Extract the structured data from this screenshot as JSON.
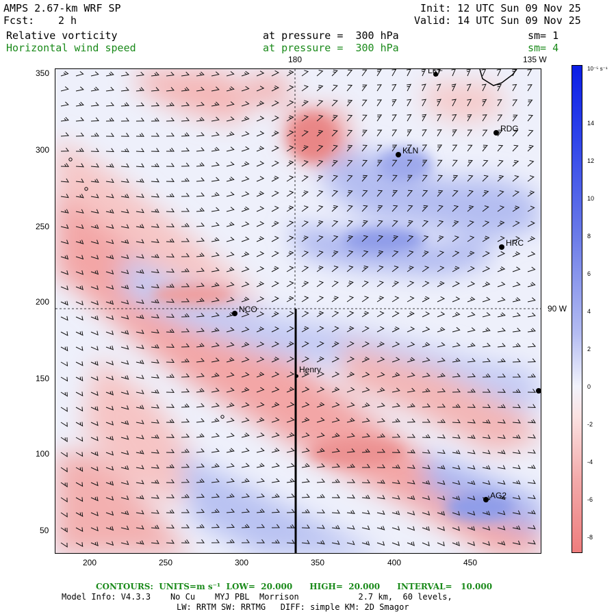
{
  "header": {
    "model": "AMPS 2.67-km WRF SP",
    "fcst_label": "Fcst:",
    "fcst_value": "2 h",
    "init": "Init: 12 UTC Sun 09 Nov 25",
    "valid": "Valid: 14 UTC Sun 09 Nov 25",
    "field1": "Relative vorticity",
    "field1_level": "at pressure =  300 hPa",
    "field1_sm": "sm= 1",
    "field2": "Horizontal wind speed",
    "field2_level": "at pressure =  300 hPa",
    "field2_sm": "sm= 4"
  },
  "map": {
    "lon_label_top_1": "180",
    "lon_label_top_2": "135 W",
    "lon_label_right": "90 W",
    "x_ticks": [
      "200",
      "250",
      "300",
      "350",
      "400",
      "450"
    ],
    "y_ticks": [
      "350",
      "300",
      "250",
      "200",
      "150",
      "100",
      "50"
    ],
    "stations": [
      {
        "name": "LKF"
      },
      {
        "name": "RDG"
      },
      {
        "name": "KLN"
      },
      {
        "name": "HRC"
      },
      {
        "name": "NCO"
      },
      {
        "name": "Henry"
      },
      {
        "name": "AG2"
      }
    ]
  },
  "colorbar": {
    "unit_label": "10⁻⁵ s⁻¹",
    "ticks": [
      "14",
      "12",
      "10",
      "8",
      "6",
      "4",
      "2",
      "0",
      "-2",
      "-4",
      "-6",
      "-8"
    ]
  },
  "footer": {
    "contours": "CONTOURS:  UNITS=m s⁻¹  LOW=  20.000      HIGH=  20.000      INTERVAL=   10.000",
    "model_info": "Model Info: V4.3.3    No Cu    MYJ PBL  Morrison            2.7 km,  60 levels,",
    "physics": "LW: RRTM SW: RRTMG   DIFF: simple KM: 2D Smagor"
  }
}
